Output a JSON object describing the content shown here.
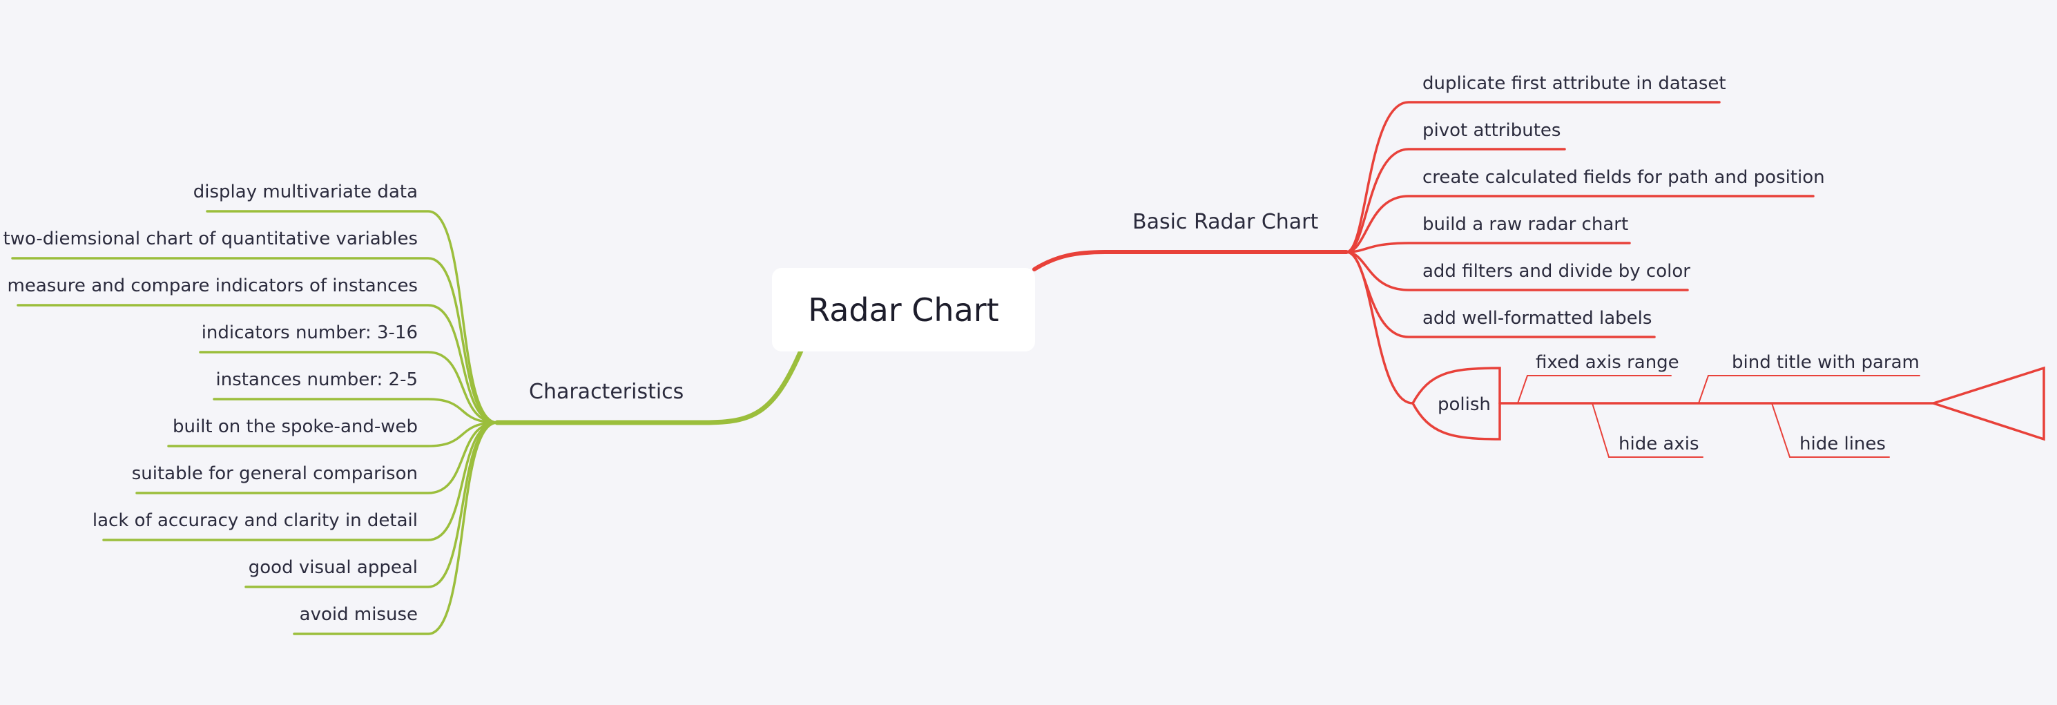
{
  "root": {
    "label": "Radar Chart"
  },
  "left_branch": {
    "label": "Characteristics",
    "color": "#9bbe3c",
    "items": [
      "display multivariate data",
      "two-diemsional chart of quantitative variables",
      "measure and compare indicators of instances",
      "indicators number: 3-16",
      "instances number: 2-5",
      "built on the spoke-and-web",
      "suitable for general comparison",
      "lack of accuracy and clarity in detail",
      "good visual appeal",
      "avoid misuse"
    ]
  },
  "right_branch": {
    "label": "Basic Radar Chart",
    "color": "#e8413a",
    "items": [
      "duplicate first attribute in dataset",
      "pivot attributes",
      "create calculated fields for path and position",
      "build a raw radar chart",
      "add filters and divide by color",
      "add well-formatted labels"
    ],
    "polish": {
      "label": "polish",
      "items_above": [
        "fixed axis range",
        "bind title with param"
      ],
      "items_below": [
        "hide axis",
        "hide lines"
      ]
    }
  }
}
